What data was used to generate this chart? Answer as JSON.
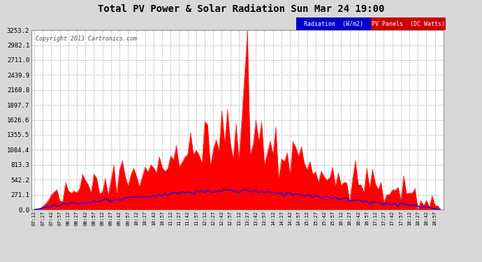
{
  "title": "Total PV Power & Solar Radiation Sun Mar 24 19:00",
  "copyright": "Copyright 2013 Cartronics.com",
  "background_color": "#d8d8d8",
  "plot_bg_color": "#ffffff",
  "y_ticks": [
    0.0,
    271.1,
    542.2,
    813.3,
    1084.4,
    1355.5,
    1626.6,
    1897.7,
    2168.8,
    2439.9,
    2711.0,
    2982.1,
    3253.2
  ],
  "y_max": 3253.2,
  "grid_color": "#999999",
  "pv_color": "#ff0000",
  "radiation_color": "#0000ff",
  "n_points": 144,
  "legend_blue_bg": "#0000cc",
  "legend_red_bg": "#cc0000",
  "legend_blue_text": "Radiation  (W/m2)",
  "legend_red_text": "PV Panels  (DC Watts)"
}
